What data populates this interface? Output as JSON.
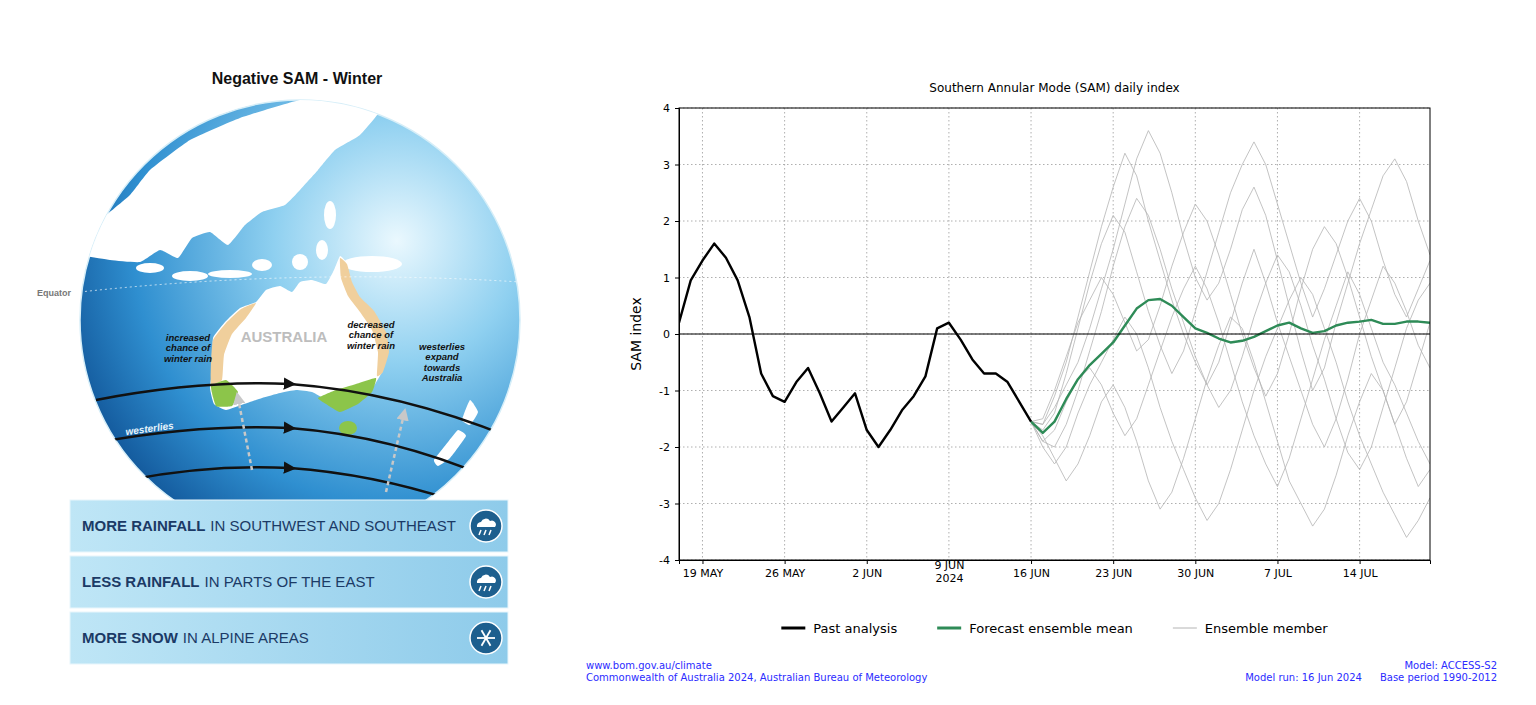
{
  "diagram": {
    "title": "Negative SAM - Winter",
    "labels": {
      "equator": "Equator",
      "australia": "AUSTRALIA",
      "west_rain": "increased chance of winter rain",
      "east_rain": "decreased chance of winter rain",
      "westerlies_expand": "westerlies expand towards Australia",
      "westerlies": "westerlies"
    },
    "banners": [
      {
        "bold": "MORE RAINFALL",
        "text": "IN SOUTHWEST AND SOUTHEAST"
      },
      {
        "bold": "LESS RAINFALL",
        "text": "IN PARTS OF THE EAST"
      },
      {
        "bold": "MORE SNOW",
        "text": "IN ALPINE AREAS"
      }
    ]
  },
  "chart_data": {
    "type": "line",
    "title": "Southern Annular Mode (SAM) daily index",
    "y_label": "SAM index",
    "x": [
      "2024-05-17",
      "2024-05-18",
      "2024-05-19",
      "2024-05-20",
      "2024-05-21",
      "2024-05-22",
      "2024-05-23",
      "2024-05-24",
      "2024-05-25",
      "2024-05-26",
      "2024-05-27",
      "2024-05-28",
      "2024-05-29",
      "2024-05-30",
      "2024-05-31",
      "2024-06-01",
      "2024-06-02",
      "2024-06-03",
      "2024-06-04",
      "2024-06-05",
      "2024-06-06",
      "2024-06-07",
      "2024-06-08",
      "2024-06-09",
      "2024-06-10",
      "2024-06-11",
      "2024-06-12",
      "2024-06-13",
      "2024-06-14",
      "2024-06-15",
      "2024-06-16",
      "2024-06-17",
      "2024-06-18",
      "2024-06-19",
      "2024-06-20",
      "2024-06-21",
      "2024-06-22",
      "2024-06-23",
      "2024-06-24",
      "2024-06-25",
      "2024-06-26",
      "2024-06-27",
      "2024-06-28",
      "2024-06-29",
      "2024-06-30",
      "2024-07-01",
      "2024-07-02",
      "2024-07-03",
      "2024-07-04",
      "2024-07-05",
      "2024-07-06",
      "2024-07-07",
      "2024-07-08",
      "2024-07-09",
      "2024-07-10",
      "2024-07-11",
      "2024-07-12",
      "2024-07-13",
      "2024-07-14",
      "2024-07-15",
      "2024-07-16",
      "2024-07-17",
      "2024-07-18",
      "2024-07-19",
      "2024-07-20"
    ],
    "xlim": [
      "2024-05-17",
      "2024-07-20"
    ],
    "xticks": [
      {
        "value": "2024-05-19",
        "label": "19 MAY"
      },
      {
        "value": "2024-05-26",
        "label": "26 MAY"
      },
      {
        "value": "2024-06-02",
        "label": "2 JUN"
      },
      {
        "value": "2024-06-09",
        "label": "9 JUN\n2024"
      },
      {
        "value": "2024-06-16",
        "label": "16 JUN"
      },
      {
        "value": "2024-06-23",
        "label": "23 JUN"
      },
      {
        "value": "2024-06-30",
        "label": "30 JUN"
      },
      {
        "value": "2024-07-07",
        "label": "7 JUL"
      },
      {
        "value": "2024-07-14",
        "label": "14 JUL"
      }
    ],
    "ylim": [
      -4,
      4
    ],
    "yticks": [
      -4,
      -3,
      -2,
      -1,
      0,
      1,
      2,
      3,
      4
    ],
    "hline": 0,
    "grid": true,
    "legend": "bottom",
    "series": [
      {
        "name": "Past analysis",
        "color": "#000000",
        "line_style": "solid",
        "values": [
          0.2,
          0.95,
          1.3,
          1.6,
          1.35,
          0.95,
          0.3,
          -0.7,
          -1.1,
          -1.2,
          -0.85,
          -0.6,
          -1.05,
          -1.55,
          -1.3,
          -1.05,
          -1.7,
          -2.0,
          -1.7,
          -1.35,
          -1.1,
          -0.75,
          0.1,
          0.2,
          -0.1,
          -0.45,
          -0.7,
          -0.7,
          -0.85,
          -1.2,
          -1.55,
          null,
          null,
          null,
          null,
          null,
          null,
          null,
          null,
          null,
          null,
          null,
          null,
          null,
          null,
          null,
          null,
          null,
          null,
          null,
          null,
          null,
          null,
          null,
          null,
          null,
          null,
          null,
          null,
          null,
          null,
          null,
          null,
          null,
          null
        ]
      },
      {
        "name": "Forecast ensemble mean",
        "color": "#2e8b57",
        "line_style": "solid",
        "values": [
          null,
          null,
          null,
          null,
          null,
          null,
          null,
          null,
          null,
          null,
          null,
          null,
          null,
          null,
          null,
          null,
          null,
          null,
          null,
          null,
          null,
          null,
          null,
          null,
          null,
          null,
          null,
          null,
          null,
          null,
          -1.55,
          -1.75,
          -1.55,
          -1.15,
          -0.8,
          -0.55,
          -0.35,
          -0.15,
          0.15,
          0.45,
          0.6,
          0.62,
          0.5,
          0.3,
          0.1,
          0.02,
          -0.08,
          -0.15,
          -0.12,
          -0.05,
          0.05,
          0.15,
          0.2,
          0.1,
          0.02,
          0.05,
          0.15,
          0.2,
          0.22,
          0.25,
          0.18,
          0.18,
          0.22,
          0.22,
          0.2
        ]
      },
      {
        "name": "Ensemble member",
        "color": "#b4b4b4",
        "line_style": "solid",
        "values": [
          null,
          null,
          null,
          null,
          null,
          null,
          null,
          null,
          null,
          null,
          null,
          null,
          null,
          null,
          null,
          null,
          null,
          null,
          null,
          null,
          null,
          null,
          null,
          null,
          null,
          null,
          null,
          null,
          null,
          null,
          -1.55,
          -1.9,
          -2.0,
          -1.6,
          -1.0,
          -0.3,
          0.4,
          1.2,
          1.9,
          2.4,
          2.1,
          1.5,
          0.8,
          0.2,
          -0.4,
          -0.9,
          -1.3,
          -1.0,
          -0.4,
          0.3,
          0.9,
          1.4,
          1.1,
          0.5,
          -0.2,
          -0.8,
          -1.5,
          -2.1,
          -2.4,
          -2.0,
          -1.3,
          -0.6,
          0.1,
          0.6,
          0.9
        ]
      },
      {
        "name": "Ensemble member",
        "color": "#b4b4b4",
        "line_style": "solid",
        "values": [
          null,
          null,
          null,
          null,
          null,
          null,
          null,
          null,
          null,
          null,
          null,
          null,
          null,
          null,
          null,
          null,
          null,
          null,
          null,
          null,
          null,
          null,
          null,
          null,
          null,
          null,
          null,
          null,
          null,
          null,
          -1.55,
          -1.6,
          -1.3,
          -0.9,
          -0.5,
          0.1,
          0.8,
          1.5,
          2.3,
          3.1,
          3.6,
          3.2,
          2.5,
          1.7,
          1.0,
          0.6,
          0.9,
          1.5,
          2.2,
          2.6,
          2.1,
          1.3,
          0.5,
          -0.3,
          -1.0,
          -0.6,
          0.2,
          0.9,
          1.6,
          2.2,
          2.8,
          3.1,
          2.7,
          2.0,
          1.4
        ]
      },
      {
        "name": "Ensemble member",
        "color": "#b4b4b4",
        "line_style": "solid",
        "values": [
          null,
          null,
          null,
          null,
          null,
          null,
          null,
          null,
          null,
          null,
          null,
          null,
          null,
          null,
          null,
          null,
          null,
          null,
          null,
          null,
          null,
          null,
          null,
          null,
          null,
          null,
          null,
          null,
          null,
          null,
          -1.55,
          -1.8,
          -2.2,
          -2.6,
          -2.3,
          -1.8,
          -1.2,
          -0.9,
          -1.3,
          -1.9,
          -2.6,
          -3.1,
          -2.8,
          -2.2,
          -1.5,
          -0.8,
          -0.2,
          0.3,
          0.1,
          -0.5,
          -1.2,
          -1.9,
          -2.6,
          -3.0,
          -3.4,
          -3.1,
          -2.5,
          -1.8,
          -1.2,
          -0.7,
          -1.0,
          -1.6,
          -2.2,
          -2.7,
          -2.4
        ]
      },
      {
        "name": "Ensemble member",
        "color": "#b4b4b4",
        "line_style": "solid",
        "values": [
          null,
          null,
          null,
          null,
          null,
          null,
          null,
          null,
          null,
          null,
          null,
          null,
          null,
          null,
          null,
          null,
          null,
          null,
          null,
          null,
          null,
          null,
          null,
          null,
          null,
          null,
          null,
          null,
          null,
          null,
          -1.55,
          -1.5,
          -1.0,
          -0.4,
          0.2,
          0.6,
          1.0,
          0.7,
          0.2,
          -0.3,
          -0.1,
          0.5,
          1.2,
          1.8,
          2.3,
          2.0,
          1.4,
          0.7,
          0.0,
          -0.6,
          -1.1,
          -0.7,
          0.0,
          0.8,
          1.5,
          1.9,
          1.6,
          1.0,
          0.3,
          -0.4,
          -1.0,
          -1.6,
          -1.2,
          -0.5,
          0.2
        ]
      },
      {
        "name": "Ensemble member",
        "color": "#b4b4b4",
        "line_style": "solid",
        "values": [
          null,
          null,
          null,
          null,
          null,
          null,
          null,
          null,
          null,
          null,
          null,
          null,
          null,
          null,
          null,
          null,
          null,
          null,
          null,
          null,
          null,
          null,
          null,
          null,
          null,
          null,
          null,
          null,
          null,
          null,
          -1.55,
          -2.0,
          -2.3,
          -2.0,
          -1.4,
          -0.9,
          -0.5,
          -0.1,
          0.3,
          0.0,
          -0.6,
          -1.3,
          -1.9,
          -2.4,
          -2.9,
          -3.3,
          -3.0,
          -2.4,
          -1.7,
          -1.0,
          -0.4,
          0.1,
          0.6,
          1.0,
          0.7,
          0.1,
          -0.5,
          -1.2,
          -1.8,
          -2.3,
          -2.8,
          -3.2,
          -3.6,
          -3.3,
          -2.9
        ]
      },
      {
        "name": "Ensemble member",
        "color": "#b4b4b4",
        "line_style": "solid",
        "values": [
          null,
          null,
          null,
          null,
          null,
          null,
          null,
          null,
          null,
          null,
          null,
          null,
          null,
          null,
          null,
          null,
          null,
          null,
          null,
          null,
          null,
          null,
          null,
          null,
          null,
          null,
          null,
          null,
          null,
          null,
          -1.55,
          -1.7,
          -1.4,
          -0.7,
          0.1,
          0.9,
          1.6,
          2.1,
          1.8,
          1.1,
          0.4,
          -0.2,
          -0.7,
          -0.3,
          0.4,
          1.1,
          1.8,
          2.5,
          3.0,
          3.4,
          3.0,
          2.3,
          1.6,
          0.9,
          0.3,
          0.8,
          1.4,
          2.0,
          2.4,
          2.0,
          1.3,
          0.7,
          0.3,
          0.8,
          1.3
        ]
      },
      {
        "name": "Ensemble member",
        "color": "#b4b4b4",
        "line_style": "solid",
        "values": [
          null,
          null,
          null,
          null,
          null,
          null,
          null,
          null,
          null,
          null,
          null,
          null,
          null,
          null,
          null,
          null,
          null,
          null,
          null,
          null,
          null,
          null,
          null,
          null,
          null,
          null,
          null,
          null,
          null,
          null,
          -1.55,
          -1.9,
          -1.7,
          -1.2,
          -0.8,
          -0.6,
          -0.9,
          -1.4,
          -1.8,
          -1.5,
          -0.9,
          -0.3,
          0.3,
          0.8,
          1.2,
          0.8,
          0.2,
          -0.5,
          -1.2,
          -1.8,
          -2.3,
          -2.7,
          -2.2,
          -1.5,
          -0.8,
          -0.1,
          0.5,
          1.1,
          0.7,
          0.1,
          -0.5,
          -0.9,
          -1.4,
          -1.9,
          -2.3
        ]
      },
      {
        "name": "Ensemble member",
        "color": "#b4b4b4",
        "line_style": "solid",
        "values": [
          null,
          null,
          null,
          null,
          null,
          null,
          null,
          null,
          null,
          null,
          null,
          null,
          null,
          null,
          null,
          null,
          null,
          null,
          null,
          null,
          null,
          null,
          null,
          null,
          null,
          null,
          null,
          null,
          null,
          null,
          -1.55,
          -1.6,
          -1.1,
          -0.5,
          0.3,
          1.1,
          1.9,
          2.6,
          3.2,
          2.8,
          2.0,
          1.3,
          0.6,
          0.0,
          -0.5,
          -0.9,
          -0.5,
          0.2,
          0.9,
          1.5,
          0.9,
          0.2,
          -0.4,
          -1.0,
          -1.6,
          -2.0,
          -1.5,
          -0.8,
          0.0,
          0.6,
          1.2,
          0.9,
          0.4,
          -0.2,
          -0.6
        ]
      }
    ],
    "source": [
      "www.bom.gov.au/climate",
      "Commonwealth of Australia 2024, Australian Bureau of Meteorology"
    ],
    "model_info": [
      "Model: ACCESS-S2",
      "Model run: 16 Jun 2024",
      "Base period 1990-2012"
    ]
  }
}
